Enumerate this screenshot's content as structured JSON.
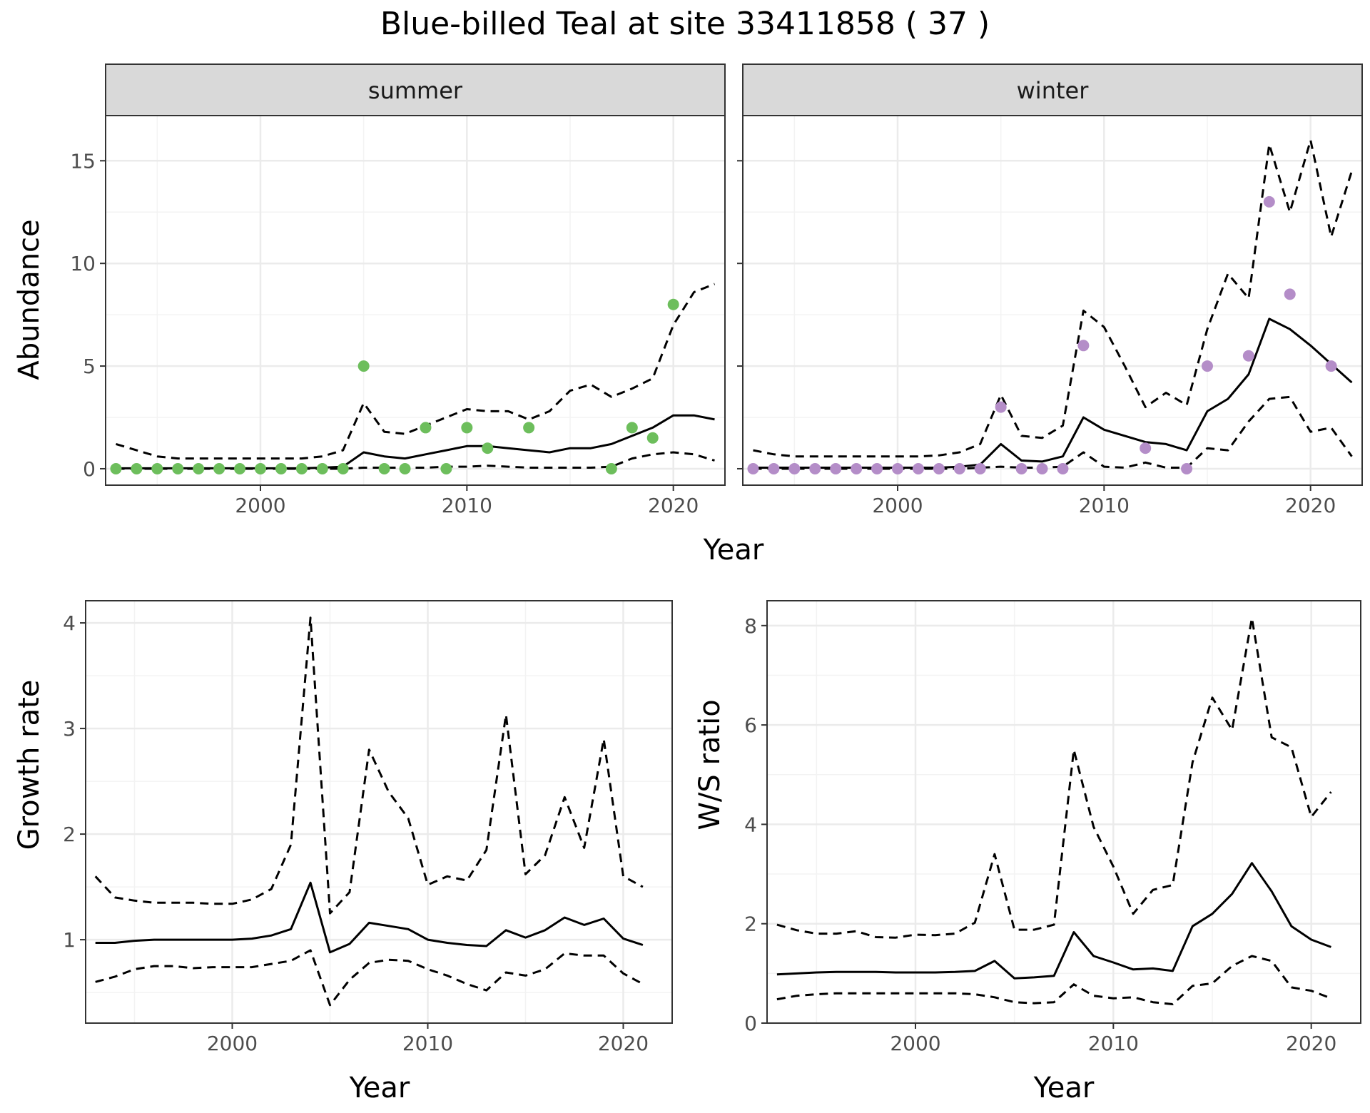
{
  "title": "Blue-billed Teal at site 33411858 ( 37 )",
  "colors": {
    "summer_points": "#6DBE5C",
    "winter_points": "#B48DC8",
    "lines": "#000000",
    "strip_bg": "#D9D9D9",
    "grid_major": "#EBEBEB",
    "grid_minor": "#F3F3F3",
    "panel_border": "#333333"
  },
  "chart_data": [
    {
      "type": "line",
      "facet": "summer",
      "xlabel": "Year",
      "ylabel": "Abundance",
      "xlim": [
        1992.5,
        2022.5
      ],
      "ylim": [
        -0.8,
        17.2
      ],
      "xticks": [
        2000,
        2010,
        2020
      ],
      "yticks": [
        0,
        5,
        10,
        15
      ],
      "grid": true,
      "points": {
        "x": [
          1993,
          1994,
          1995,
          1996,
          1997,
          1998,
          1999,
          2000,
          2001,
          2002,
          2003,
          2004,
          2005,
          2006,
          2007,
          2008,
          2009,
          2010,
          2011,
          2013,
          2017,
          2018,
          2019,
          2020
        ],
        "y": [
          0,
          0,
          0,
          0,
          0,
          0,
          0,
          0,
          0,
          0,
          0,
          0,
          5,
          0,
          0,
          2,
          0,
          2,
          1,
          2,
          0,
          2,
          1.5,
          8
        ]
      },
      "series": [
        {
          "style": "solid",
          "x": [
            1993,
            1994,
            1995,
            1996,
            1997,
            1998,
            1999,
            2000,
            2001,
            2002,
            2003,
            2004,
            2005,
            2006,
            2007,
            2008,
            2009,
            2010,
            2011,
            2012,
            2013,
            2014,
            2015,
            2016,
            2017,
            2018,
            2019,
            2020,
            2021,
            2022
          ],
          "values": [
            0.02,
            0.02,
            0.02,
            0.02,
            0.02,
            0.02,
            0.02,
            0.02,
            0.02,
            0.02,
            0.05,
            0.1,
            0.8,
            0.6,
            0.5,
            0.7,
            0.9,
            1.1,
            1.1,
            1.0,
            0.9,
            0.8,
            1.0,
            1.0,
            1.2,
            1.6,
            2.0,
            2.6,
            2.6,
            2.4
          ]
        },
        {
          "style": "dashed",
          "x": [
            1993,
            1994,
            1995,
            1996,
            1997,
            1998,
            1999,
            2000,
            2001,
            2002,
            2003,
            2004,
            2005,
            2006,
            2007,
            2008,
            2009,
            2010,
            2011,
            2012,
            2013,
            2014,
            2015,
            2016,
            2017,
            2018,
            2019,
            2020,
            2021,
            2022
          ],
          "values": [
            1.2,
            0.9,
            0.6,
            0.5,
            0.5,
            0.5,
            0.5,
            0.5,
            0.5,
            0.5,
            0.6,
            0.9,
            3.2,
            1.8,
            1.7,
            2.1,
            2.5,
            2.9,
            2.8,
            2.8,
            2.4,
            2.8,
            3.8,
            4.1,
            3.5,
            3.9,
            4.4,
            7.0,
            8.6,
            9.0
          ]
        },
        {
          "style": "dashed",
          "x": [
            1993,
            1994,
            1995,
            1996,
            1997,
            1998,
            1999,
            2000,
            2001,
            2002,
            2003,
            2004,
            2005,
            2006,
            2007,
            2008,
            2009,
            2010,
            2011,
            2012,
            2013,
            2014,
            2015,
            2016,
            2017,
            2018,
            2019,
            2020,
            2021,
            2022
          ],
          "values": [
            0,
            0,
            0,
            0,
            0,
            0,
            0,
            0,
            0,
            0,
            0,
            0,
            0.05,
            0.05,
            0.05,
            0.05,
            0.1,
            0.1,
            0.15,
            0.1,
            0.05,
            0.05,
            0.05,
            0.05,
            0.1,
            0.5,
            0.7,
            0.8,
            0.7,
            0.4
          ]
        }
      ]
    },
    {
      "type": "line",
      "facet": "winter",
      "xlabel": "Year",
      "ylabel": "Abundance",
      "xlim": [
        1992.5,
        2022.5
      ],
      "ylim": [
        -0.8,
        17.2
      ],
      "xticks": [
        2000,
        2010,
        2020
      ],
      "yticks": [
        0,
        5,
        10,
        15
      ],
      "grid": true,
      "points": {
        "x": [
          1993,
          1994,
          1995,
          1996,
          1997,
          1998,
          1999,
          2000,
          2001,
          2002,
          2003,
          2004,
          2005,
          2006,
          2007,
          2008,
          2009,
          2012,
          2014,
          2015,
          2017,
          2018,
          2019,
          2021
        ],
        "y": [
          0,
          0,
          0,
          0,
          0,
          0,
          0,
          0,
          0,
          0,
          0,
          0,
          3,
          0,
          0,
          0,
          6,
          1,
          0,
          5,
          5.5,
          13,
          8.5,
          5
        ]
      },
      "series": [
        {
          "style": "solid",
          "x": [
            1993,
            1994,
            1995,
            1996,
            1997,
            1998,
            1999,
            2000,
            2001,
            2002,
            2003,
            2004,
            2005,
            2006,
            2007,
            2008,
            2009,
            2010,
            2011,
            2012,
            2013,
            2014,
            2015,
            2016,
            2017,
            2018,
            2019,
            2020,
            2021,
            2022
          ],
          "values": [
            0.05,
            0.05,
            0.05,
            0.05,
            0.05,
            0.05,
            0.05,
            0.05,
            0.05,
            0.05,
            0.1,
            0.2,
            1.2,
            0.4,
            0.35,
            0.6,
            2.5,
            1.9,
            1.6,
            1.3,
            1.2,
            0.9,
            2.8,
            3.4,
            4.6,
            7.3,
            6.8,
            6.0,
            5.1,
            4.2
          ]
        },
        {
          "style": "dashed",
          "x": [
            1993,
            1994,
            1995,
            1996,
            1997,
            1998,
            1999,
            2000,
            2001,
            2002,
            2003,
            2004,
            2005,
            2006,
            2007,
            2008,
            2009,
            2010,
            2011,
            2012,
            2013,
            2014,
            2015,
            2016,
            2017,
            2018,
            2019,
            2020,
            2021,
            2022
          ],
          "values": [
            0.9,
            0.7,
            0.6,
            0.6,
            0.6,
            0.6,
            0.6,
            0.6,
            0.6,
            0.65,
            0.8,
            1.2,
            3.6,
            1.6,
            1.5,
            2.1,
            7.7,
            6.9,
            5.0,
            3.0,
            3.7,
            3.1,
            6.8,
            9.5,
            8.3,
            15.8,
            12.5,
            16.0,
            11.3,
            14.5
          ]
        },
        {
          "style": "dashed",
          "x": [
            1993,
            1994,
            1995,
            1996,
            1997,
            1998,
            1999,
            2000,
            2001,
            2002,
            2003,
            2004,
            2005,
            2006,
            2007,
            2008,
            2009,
            2010,
            2011,
            2012,
            2013,
            2014,
            2015,
            2016,
            2017,
            2018,
            2019,
            2020,
            2021,
            2022
          ],
          "values": [
            0,
            0,
            0,
            0,
            0,
            0,
            0,
            0,
            0,
            0,
            0,
            0.05,
            0.1,
            0.05,
            0.05,
            0.1,
            0.8,
            0.1,
            0.05,
            0.3,
            0.05,
            0.05,
            1.0,
            0.9,
            2.3,
            3.4,
            3.5,
            1.8,
            2.0,
            0.6
          ]
        }
      ]
    },
    {
      "type": "line",
      "xlabel": "Year",
      "ylabel": "Growth rate",
      "xlim": [
        1992.5,
        2022.5
      ],
      "ylim": [
        0.21,
        4.21
      ],
      "xticks": [
        2000,
        2010,
        2020
      ],
      "yticks": [
        1,
        2,
        3,
        4
      ],
      "grid": true,
      "series": [
        {
          "style": "solid",
          "x": [
            1993,
            1994,
            1995,
            1996,
            1997,
            1998,
            1999,
            2000,
            2001,
            2002,
            2003,
            2004,
            2005,
            2006,
            2007,
            2008,
            2009,
            2010,
            2011,
            2012,
            2013,
            2014,
            2015,
            2016,
            2017,
            2018,
            2019,
            2020,
            2021
          ],
          "values": [
            0.97,
            0.97,
            0.99,
            1.0,
            1.0,
            1.0,
            1.0,
            1.0,
            1.01,
            1.04,
            1.1,
            1.54,
            0.88,
            0.96,
            1.16,
            1.13,
            1.1,
            1.0,
            0.97,
            0.95,
            0.94,
            1.09,
            1.02,
            1.09,
            1.21,
            1.14,
            1.2,
            1.01,
            0.95
          ]
        },
        {
          "style": "dashed",
          "x": [
            1993,
            1994,
            1995,
            1996,
            1997,
            1998,
            1999,
            2000,
            2001,
            2002,
            2003,
            2004,
            2005,
            2006,
            2007,
            2008,
            2009,
            2010,
            2011,
            2012,
            2013,
            2014,
            2015,
            2016,
            2017,
            2018,
            2019,
            2020,
            2021
          ],
          "values": [
            1.6,
            1.4,
            1.37,
            1.35,
            1.35,
            1.35,
            1.34,
            1.34,
            1.38,
            1.48,
            1.9,
            4.05,
            1.25,
            1.45,
            2.8,
            2.4,
            2.15,
            1.52,
            1.6,
            1.56,
            1.85,
            3.13,
            1.62,
            1.8,
            2.35,
            1.87,
            2.9,
            1.6,
            1.5
          ]
        },
        {
          "style": "dashed",
          "x": [
            1993,
            1994,
            1995,
            1996,
            1997,
            1998,
            1999,
            2000,
            2001,
            2002,
            2003,
            2004,
            2005,
            2006,
            2007,
            2008,
            2009,
            2010,
            2011,
            2012,
            2013,
            2014,
            2015,
            2016,
            2017,
            2018,
            2019,
            2020,
            2021
          ],
          "values": [
            0.6,
            0.65,
            0.72,
            0.75,
            0.75,
            0.73,
            0.74,
            0.74,
            0.74,
            0.77,
            0.8,
            0.9,
            0.38,
            0.62,
            0.78,
            0.81,
            0.8,
            0.72,
            0.66,
            0.58,
            0.52,
            0.69,
            0.66,
            0.72,
            0.87,
            0.85,
            0.85,
            0.68,
            0.58
          ]
        }
      ]
    },
    {
      "type": "line",
      "xlabel": "Year",
      "ylabel": "W/S ratio",
      "xlim": [
        1992.5,
        2022.5
      ],
      "ylim": [
        0,
        8.5
      ],
      "xticks": [
        2000,
        2010,
        2020
      ],
      "yticks": [
        0,
        2,
        4,
        6,
        8
      ],
      "grid": true,
      "series": [
        {
          "style": "solid",
          "x": [
            1993,
            1994,
            1995,
            1996,
            1997,
            1998,
            1999,
            2000,
            2001,
            2002,
            2003,
            2004,
            2005,
            2006,
            2007,
            2008,
            2009,
            2010,
            2011,
            2012,
            2013,
            2014,
            2015,
            2016,
            2017,
            2018,
            2019,
            2020,
            2021
          ],
          "values": [
            0.98,
            1.0,
            1.02,
            1.03,
            1.03,
            1.03,
            1.02,
            1.02,
            1.02,
            1.03,
            1.05,
            1.25,
            0.9,
            0.92,
            0.95,
            1.83,
            1.35,
            1.22,
            1.08,
            1.1,
            1.05,
            1.95,
            2.2,
            2.6,
            3.22,
            2.65,
            1.95,
            1.68,
            1.53
          ]
        },
        {
          "style": "dashed",
          "x": [
            1993,
            1994,
            1995,
            1996,
            1997,
            1998,
            1999,
            2000,
            2001,
            2002,
            2003,
            2004,
            2005,
            2006,
            2007,
            2008,
            2009,
            2010,
            2011,
            2012,
            2013,
            2014,
            2015,
            2016,
            2017,
            2018,
            2019,
            2020,
            2021
          ],
          "values": [
            1.98,
            1.87,
            1.8,
            1.8,
            1.85,
            1.73,
            1.72,
            1.78,
            1.77,
            1.8,
            2.02,
            3.4,
            1.88,
            1.88,
            1.98,
            5.5,
            3.95,
            3.15,
            2.2,
            2.68,
            2.78,
            5.25,
            6.55,
            5.9,
            8.15,
            5.75,
            5.55,
            4.15,
            4.65
          ]
        },
        {
          "style": "dashed",
          "x": [
            1993,
            1994,
            1995,
            1996,
            1997,
            1998,
            1999,
            2000,
            2001,
            2002,
            2003,
            2004,
            2005,
            2006,
            2007,
            2008,
            2009,
            2010,
            2011,
            2012,
            2013,
            2014,
            2015,
            2016,
            2017,
            2018,
            2019,
            2020,
            2021
          ],
          "values": [
            0.48,
            0.55,
            0.58,
            0.6,
            0.6,
            0.6,
            0.6,
            0.6,
            0.6,
            0.6,
            0.58,
            0.52,
            0.42,
            0.4,
            0.42,
            0.78,
            0.55,
            0.5,
            0.52,
            0.42,
            0.38,
            0.75,
            0.8,
            1.15,
            1.35,
            1.25,
            0.72,
            0.65,
            0.5
          ]
        }
      ]
    }
  ]
}
